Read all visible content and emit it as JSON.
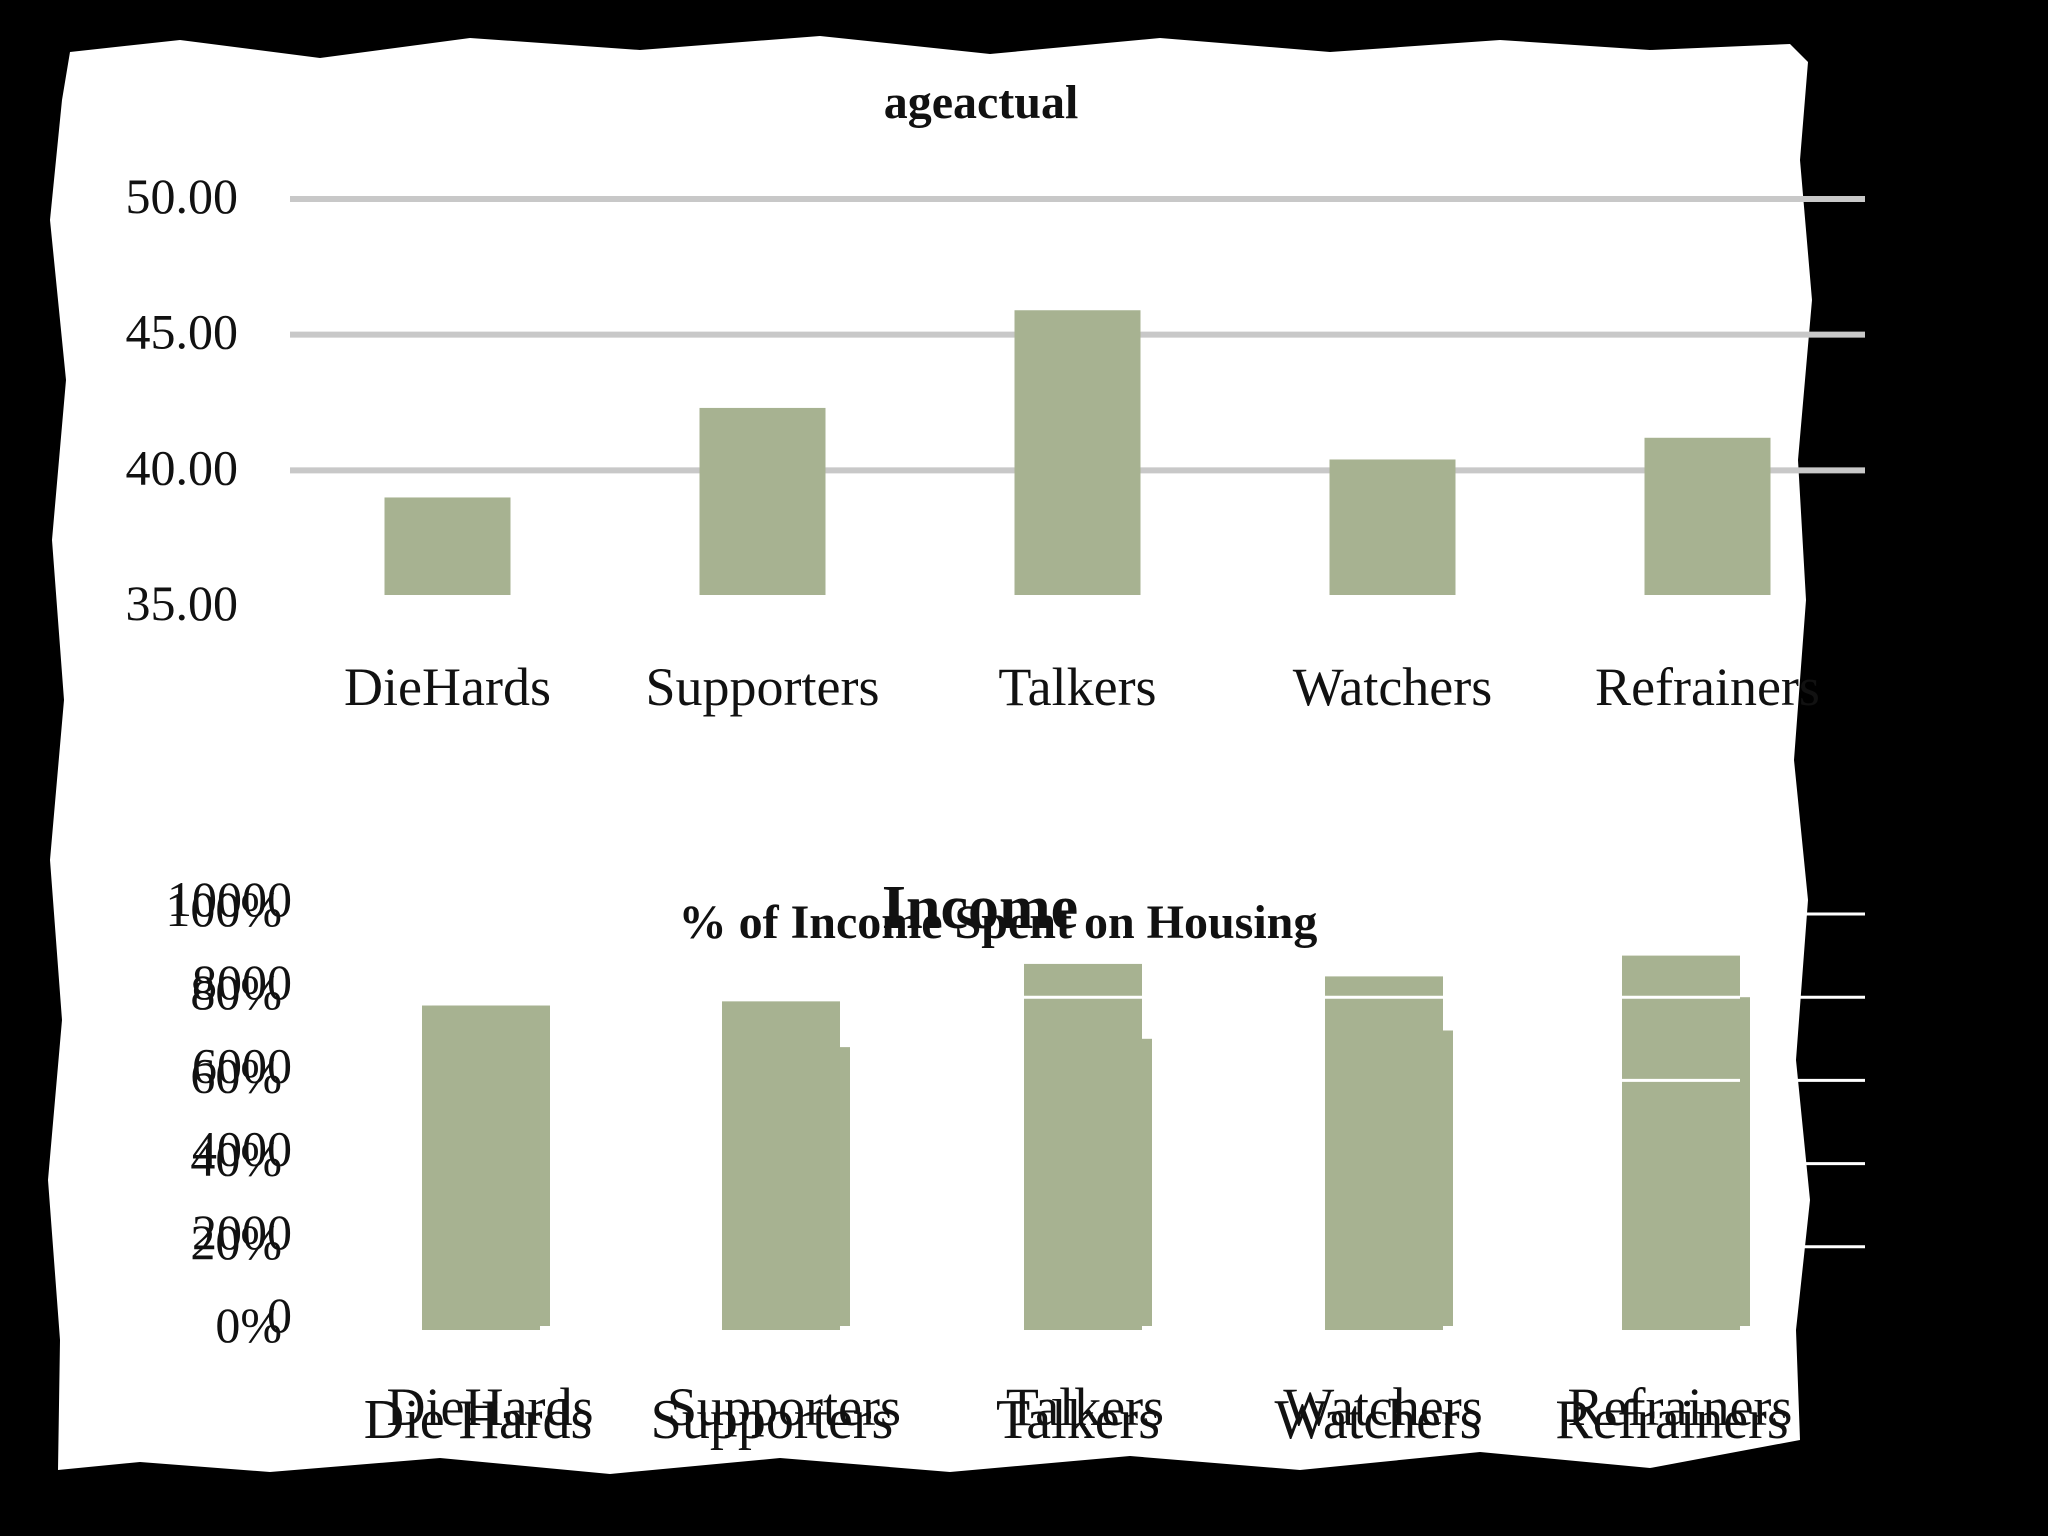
{
  "colors": {
    "bar": "#a7b291",
    "grid": "#c8c8c8",
    "frame": "#ffffff",
    "background": "#000000",
    "text": "#111111"
  },
  "chart_data": [
    {
      "type": "bar",
      "title": "ageactual",
      "categories": [
        "DieHards",
        "Supporters",
        "Talkers",
        "Watchers",
        "Refrainers"
      ],
      "values": [
        39.0,
        42.3,
        45.9,
        40.4,
        41.2
      ],
      "ylim": [
        35,
        50
      ],
      "yticks": [
        "35.00",
        "40.00",
        "45.00",
        "50.00"
      ],
      "grid": true,
      "legend": "none"
    },
    {
      "type": "bar",
      "title": "% of Income Spent on Housing",
      "categories": [
        "Die Hards",
        "Supporters",
        "Talkers",
        "Watchers",
        "Refrainers"
      ],
      "values": [
        78,
        79,
        88,
        85,
        90
      ],
      "ylim": [
        0,
        100
      ],
      "yticks": [
        "0%",
        "20%",
        "40%",
        "60%",
        "80%",
        "100%"
      ],
      "grid": true,
      "legend": "none"
    },
    {
      "type": "bar",
      "title": "Income",
      "categories": [
        "DieHards",
        "Supporters",
        "Talkers",
        "Watchers",
        "Refrainers"
      ],
      "values": [
        7800,
        6800,
        7000,
        7200,
        8000
      ],
      "ylim": [
        0,
        10000
      ],
      "yticks": [
        "0",
        "2000",
        "4000",
        "6000",
        "8000",
        "10000"
      ],
      "grid": true,
      "legend": "none"
    }
  ]
}
